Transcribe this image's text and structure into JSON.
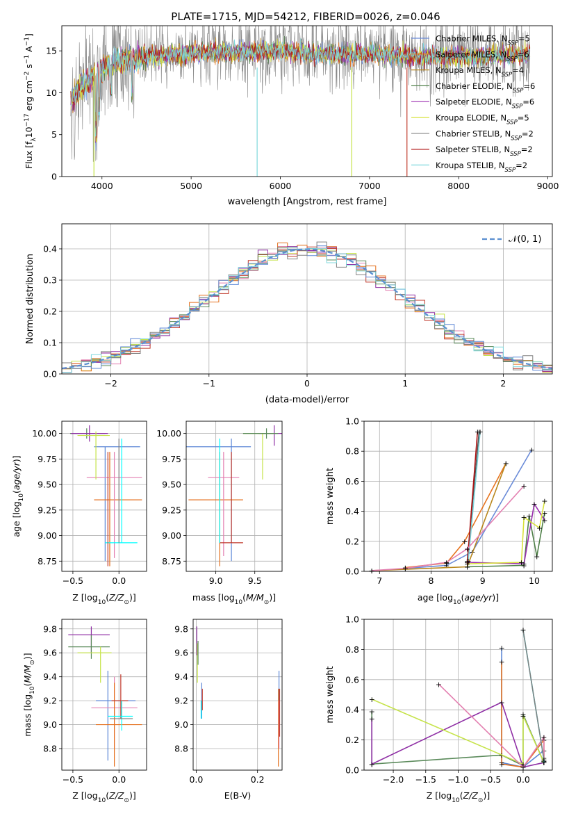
{
  "title": "PLATE=1715, MJD=54212, FIBERID=0026, z=0.046",
  "colors": {
    "series": [
      "#6a8bd8",
      "#e7741f",
      "#b8861c",
      "#4f8048",
      "#9b2fb0",
      "#d8e23a",
      "#505050",
      "#b01515",
      "#7ad3da"
    ],
    "normal_curve": "#5b8fd0",
    "grid": "#b0b0b0",
    "axes": "#000000",
    "gray_data": "#808080",
    "cyan_data": "#7fd8dd",
    "pink": "#e37fb0",
    "yellow": "#c6e34a",
    "green": "#5a8a5a",
    "purple": "#8f2fa5",
    "red": "#c0392b",
    "blue": "#5b86d6",
    "orange": "#e46f1c"
  },
  "chart_data": [
    {
      "type": "line",
      "panel": "spectrum",
      "title": "PLATE=1715, MJD=54212, FIBERID=0026, z=0.046",
      "xlabel": "wavelength [Angstrom, rest frame]",
      "ylabel": "Flux [f$_\\lambda$10$^{-17}$ erg cm$^{-2}$ s$^{-1}$ A$^{-1}$]",
      "ylabel_parts": [
        "Flux [f",
        "λ",
        "10",
        "−17",
        " erg cm",
        "−2",
        " s",
        "−1",
        " A",
        "−1",
        "]"
      ],
      "xlim": [
        3550,
        9050
      ],
      "ylim": [
        0,
        18
      ],
      "xticks": [
        4000,
        5000,
        6000,
        7000,
        8000,
        9000
      ],
      "yticks": [
        0,
        5,
        10,
        15
      ],
      "grid": false,
      "legend_position": "top-right",
      "legend": [
        {
          "name": "Chabrier MILES",
          "nssp": "5"
        },
        {
          "name": "Salpeter MILES",
          "nssp": "6"
        },
        {
          "name": "Kroupa MILES",
          "nssp": "4"
        },
        {
          "name": "Chabrier ELODIE",
          "nssp": "6"
        },
        {
          "name": "Salpeter ELODIE",
          "nssp": "6"
        },
        {
          "name": "Kroupa ELODIE",
          "nssp": "5"
        },
        {
          "name": "Chabrier STELIB",
          "nssp": "2"
        },
        {
          "name": "Salpeter STELIB",
          "nssp": "2"
        },
        {
          "name": "Kroupa STELIB",
          "nssp": "2"
        }
      ],
      "data_shape": {
        "x_range": [
          3650,
          8800
        ],
        "anchor_x": [
          3650,
          3750,
          3900,
          4100,
          4300,
          4500,
          4800,
          5200,
          5600,
          6000,
          6500,
          7000,
          7500,
          8000,
          8500,
          8800
        ],
        "anchor_y": [
          9.0,
          10.5,
          12.0,
          13.5,
          14.0,
          14.3,
          14.6,
          14.8,
          14.9,
          15.0,
          14.6,
          14.6,
          14.3,
          14.3,
          14.4,
          14.6
        ],
        "cut_lines": [
          3910,
          5740,
          6800,
          7420
        ]
      }
    },
    {
      "type": "bar",
      "panel": "residual-histogram",
      "xlabel": "(data-model)/error",
      "ylabel": "Normed distribution",
      "xlim": [
        -2.5,
        2.5
      ],
      "ylim": [
        0,
        0.48
      ],
      "xticks": [
        -2,
        -1,
        0,
        1,
        2
      ],
      "yticks": [
        0.0,
        0.1,
        0.2,
        0.3,
        0.4
      ],
      "grid": true,
      "legend_position": "top-right",
      "legend": [
        "𝒩(0, 1)"
      ],
      "bin_width": 0.1,
      "bin_start": -2.5,
      "bins": 50
    },
    {
      "type": "scatter",
      "panel": "age-vs-Z",
      "xlabel": "Z [log$_{10}$($Z/Z_\\odot$)]",
      "ylabel": "age  [log$_{10}$($age/yr$)]",
      "xlim": [
        -0.62,
        0.3
      ],
      "ylim": [
        8.65,
        10.12
      ],
      "xticks": [
        -0.5,
        0.0
      ],
      "yticks": [
        8.75,
        9.0,
        9.25,
        9.5,
        9.75,
        10.0
      ],
      "grid": true
    },
    {
      "type": "scatter",
      "panel": "age-vs-mass",
      "xlabel": "mass [log$_{10}$($M/M_\\odot$)]",
      "xlim": [
        8.62,
        9.85
      ],
      "ylim": [
        8.65,
        10.12
      ],
      "xticks": [
        9.0,
        9.5
      ],
      "yticks": [
        8.75,
        9.0,
        9.25,
        9.5,
        9.75,
        10.0
      ],
      "grid": true
    },
    {
      "type": "line",
      "panel": "weight-vs-age",
      "xlabel": "age  [log$_{10}$($age/yr$)]",
      "ylabel": "mass weight",
      "xlim": [
        6.7,
        10.35
      ],
      "ylim": [
        0,
        1.0
      ],
      "xticks": [
        7,
        8,
        9,
        10
      ],
      "yticks": [
        0.0,
        0.2,
        0.4,
        0.6,
        0.8,
        1.0
      ],
      "grid": true,
      "series": [
        {
          "color_index": 0,
          "x": [
            7.5,
            8.3,
            8.8,
            9.95
          ],
          "y": [
            0.02,
            0.04,
            0.13,
            0.81
          ]
        },
        {
          "color_index": 1,
          "x": [
            7.5,
            8.3,
            8.65,
            9.45
          ],
          "y": [
            0.025,
            0.055,
            0.2,
            0.72
          ]
        },
        {
          "color_index": 2,
          "x": [
            6.85,
            8.7,
            9.45
          ],
          "y": [
            0.005,
            0.03,
            0.72
          ]
        },
        {
          "color_index": 3,
          "x": [
            8.7,
            9.8,
            9.9,
            10.05,
            10.2
          ],
          "y": [
            0.03,
            0.04,
            0.37,
            0.1,
            0.39
          ]
        },
        {
          "color_index": 4,
          "x": [
            8.7,
            9.8,
            10.0,
            10.2
          ],
          "y": [
            0.06,
            0.05,
            0.45,
            0.34
          ]
        },
        {
          "color_index": 5,
          "x": [
            8.7,
            9.75,
            9.8,
            10.1,
            10.2
          ],
          "y": [
            0.05,
            0.06,
            0.36,
            0.29,
            0.47
          ]
        },
        {
          "color_index": 6,
          "x": [
            8.7,
            8.93
          ],
          "y": [
            0.07,
            0.93
          ]
        },
        {
          "color_index": 7,
          "x": [
            8.7,
            8.9
          ],
          "y": [
            0.05,
            0.93
          ]
        },
        {
          "color_index": 8,
          "x": [
            8.72,
            8.95
          ],
          "y": [
            0.07,
            0.93
          ]
        },
        {
          "color": "pink",
          "x": [
            6.85,
            7.5,
            8.3,
            8.7,
            9.8
          ],
          "y": [
            0.005,
            0.02,
            0.06,
            0.15,
            0.57
          ]
        }
      ]
    },
    {
      "type": "scatter",
      "panel": "mass-vs-Z",
      "xlabel": "Z [log$_{10}$($Z/Z_\\odot$)]",
      "ylabel": "mass [log$_{10}$($M/M_\\odot$)]",
      "xlim": [
        -0.62,
        0.3
      ],
      "ylim": [
        8.62,
        9.88
      ],
      "xticks": [
        -0.5,
        0.0
      ],
      "yticks": [
        8.8,
        9.0,
        9.2,
        9.4,
        9.6,
        9.8
      ],
      "grid": true
    },
    {
      "type": "scatter",
      "panel": "mass-vs-ebv",
      "xlabel": "E(B-V)",
      "xlim": [
        -0.01,
        0.28
      ],
      "ylim": [
        8.62,
        9.88
      ],
      "xticks": [
        0.0,
        0.2
      ],
      "yticks": [
        8.8,
        9.0,
        9.2,
        9.4,
        9.6,
        9.8
      ],
      "grid": true
    },
    {
      "type": "line",
      "panel": "weight-vs-Z",
      "xlabel": "Z [log$_{10}$($Z/Z_\\odot$)]",
      "ylabel": "mass weight",
      "xlim": [
        -2.45,
        0.45
      ],
      "ylim": [
        0,
        1.0
      ],
      "xticks": [
        -2.0,
        -1.5,
        -1.0,
        -0.5,
        0.0
      ],
      "yticks": [
        0.0,
        0.2,
        0.4,
        0.6,
        0.8,
        1.0
      ],
      "grid": true,
      "series": [
        {
          "color": "blue",
          "x": [
            -0.33,
            -0.33,
            0.0,
            0.32,
            0.32
          ],
          "y": [
            0.81,
            0.05,
            0.02,
            0.13,
            0.08
          ]
        },
        {
          "color": "orange",
          "x": [
            -0.33,
            -0.33,
            0.0,
            0.32,
            0.32
          ],
          "y": [
            0.72,
            0.04,
            0.02,
            0.2,
            0.06
          ]
        },
        {
          "color": "green",
          "x": [
            -2.33,
            -2.33,
            -0.33,
            0.0,
            0.0,
            0.32
          ],
          "y": [
            0.39,
            0.04,
            0.1,
            0.03,
            0.37,
            0.05
          ]
        },
        {
          "color": "purple",
          "x": [
            -2.33,
            -2.33,
            -0.33,
            0.0,
            0.32,
            0.32
          ],
          "y": [
            0.34,
            0.04,
            0.45,
            0.02,
            0.05,
            0.06
          ]
        },
        {
          "color": "yellow",
          "x": [
            -2.33,
            0.0,
            0.0,
            0.32
          ],
          "y": [
            0.47,
            0.04,
            0.36,
            0.05
          ]
        },
        {
          "color": "pink",
          "x": [
            -1.3,
            0.0,
            0.32,
            0.32
          ],
          "y": [
            0.57,
            0.02,
            0.22,
            0.05
          ]
        },
        {
          "color": "cyan",
          "x": [
            0.0,
            0.32,
            0.32
          ],
          "y": [
            0.93,
            0.07,
            0.05
          ]
        },
        {
          "color": "gray",
          "x": [
            0.0,
            0.32
          ],
          "y": [
            0.93,
            0.07
          ]
        }
      ]
    }
  ]
}
